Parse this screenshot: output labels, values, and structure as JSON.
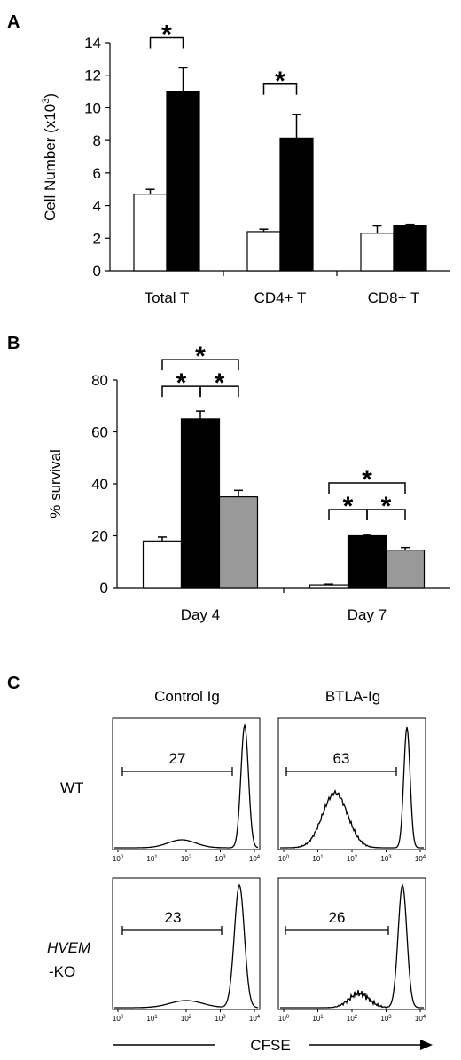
{
  "panel_a": {
    "letter": "A",
    "chart_data": {
      "type": "bar",
      "categories": [
        "Total T",
        "CD4+ T",
        "CD8+ T"
      ],
      "series": [
        {
          "values": [
            4.7,
            2.4,
            2.3
          ],
          "errors": [
            0.3,
            0.15,
            0.45
          ],
          "color": "#ffffff"
        },
        {
          "values": [
            11.0,
            8.15,
            2.8
          ],
          "errors": [
            1.45,
            1.45,
            0.05
          ],
          "color": "#000000"
        }
      ],
      "ylabel_main": "Cell Number (x10",
      "ylabel_sup": "3",
      "ylabel_end": ")",
      "yticks": [
        "0",
        "2",
        "4",
        "6",
        "8",
        "10",
        "12",
        "14"
      ],
      "ylim": [
        0,
        14
      ],
      "significance": [
        {
          "category": "Total T",
          "from_series": 0,
          "to_series": 1,
          "mark": "*"
        },
        {
          "category": "CD4+ T",
          "from_series": 0,
          "to_series": 1,
          "mark": "*"
        }
      ]
    }
  },
  "panel_b": {
    "letter": "B",
    "chart_data": {
      "type": "bar",
      "categories": [
        "Day 4",
        "Day 7"
      ],
      "series": [
        {
          "values": [
            18,
            1
          ],
          "errors": [
            1.5,
            0.3
          ],
          "color": "#ffffff"
        },
        {
          "values": [
            65,
            20
          ],
          "errors": [
            3,
            0.5
          ],
          "color": "#000000"
        },
        {
          "values": [
            35,
            14.5
          ],
          "errors": [
            2.5,
            1
          ],
          "color": "#999999"
        }
      ],
      "ylabel": "% survival",
      "yticks": [
        "0",
        "20",
        "40",
        "60",
        "80"
      ],
      "ylim": [
        0,
        80
      ],
      "significance": [
        {
          "category": "Day 4",
          "from_series": 0,
          "to_series": 1,
          "mark": "*",
          "level": 1
        },
        {
          "category": "Day 4",
          "from_series": 1,
          "to_series": 2,
          "mark": "*",
          "level": 1
        },
        {
          "category": "Day 4",
          "from_series": 0,
          "to_series": 2,
          "mark": "*",
          "level": 2
        },
        {
          "category": "Day 7",
          "from_series": 0,
          "to_series": 1,
          "mark": "*",
          "level": 1
        },
        {
          "category": "Day 7",
          "from_series": 1,
          "to_series": 2,
          "mark": "*",
          "level": 1
        },
        {
          "category": "Day 7",
          "from_series": 0,
          "to_series": 2,
          "mark": "*",
          "level": 2
        }
      ]
    }
  },
  "panel_c": {
    "letter": "C",
    "col_titles": [
      "Control Ig",
      "BTLA-Ig"
    ],
    "row_labels": [
      {
        "line1": "WT",
        "line2": ""
      },
      {
        "line1": "HVEM",
        "line2": "-KO"
      }
    ],
    "x_axis_label": "CFSE",
    "tick_base": "10",
    "tick_exponents": [
      "0",
      "1",
      "2",
      "3",
      "4"
    ],
    "histograms": [
      {
        "gate_value": "27"
      },
      {
        "gate_value": "63"
      },
      {
        "gate_value": "23"
      },
      {
        "gate_value": "26"
      }
    ]
  }
}
